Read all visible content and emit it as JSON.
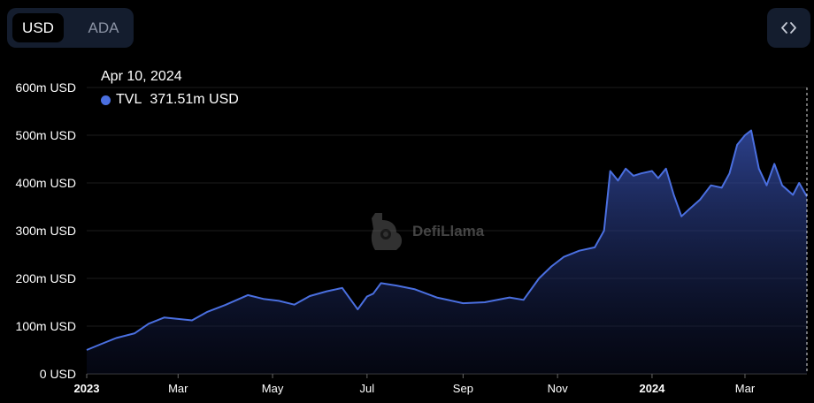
{
  "toolbar": {
    "currency_options": [
      "USD",
      "ADA"
    ],
    "selected_currency": "USD",
    "embed_icon": "code-brackets-icon"
  },
  "tooltip": {
    "date": "Apr 10, 2024",
    "series_name": "TVL",
    "value": "371.51m USD",
    "color": "#4a6fe0"
  },
  "watermark": {
    "text": "DefiLlama",
    "icon": "llama-logo-icon"
  },
  "chart_data": {
    "type": "area",
    "series": [
      {
        "name": "TVL",
        "color": "#4a6fe0",
        "x": [
          "2023-01-01",
          "2023-01-10",
          "2023-01-20",
          "2023-02-01",
          "2023-02-10",
          "2023-02-20",
          "2023-03-01",
          "2023-03-10",
          "2023-03-20",
          "2023-04-01",
          "2023-04-15",
          "2023-04-25",
          "2023-05-05",
          "2023-05-15",
          "2023-05-25",
          "2023-06-05",
          "2023-06-15",
          "2023-06-25",
          "2023-07-01",
          "2023-07-05",
          "2023-07-10",
          "2023-07-20",
          "2023-08-01",
          "2023-08-15",
          "2023-09-01",
          "2023-09-15",
          "2023-10-01",
          "2023-10-10",
          "2023-10-20",
          "2023-10-28",
          "2023-11-05",
          "2023-11-15",
          "2023-11-25",
          "2023-12-01",
          "2023-12-05",
          "2023-12-10",
          "2023-12-15",
          "2023-12-20",
          "2023-12-25",
          "2024-01-01",
          "2024-01-05",
          "2024-01-10",
          "2024-01-15",
          "2024-01-20",
          "2024-01-25",
          "2024-02-01",
          "2024-02-08",
          "2024-02-15",
          "2024-02-20",
          "2024-02-25",
          "2024-03-01",
          "2024-03-05",
          "2024-03-10",
          "2024-03-15",
          "2024-03-20",
          "2024-03-25",
          "2024-04-01",
          "2024-04-05",
          "2024-04-10"
        ],
        "values": [
          50,
          62,
          75,
          85,
          105,
          118,
          115,
          112,
          130,
          145,
          165,
          157,
          153,
          145,
          163,
          173,
          180,
          135,
          162,
          168,
          190,
          185,
          177,
          160,
          148,
          150,
          160,
          155,
          200,
          225,
          245,
          258,
          265,
          300,
          425,
          405,
          430,
          415,
          420,
          425,
          410,
          430,
          375,
          330,
          345,
          365,
          395,
          390,
          420,
          480,
          500,
          510,
          430,
          395,
          440,
          395,
          375,
          400,
          371.51
        ]
      }
    ],
    "xlabel": "",
    "ylabel": "",
    "ylim": [
      0,
      600
    ],
    "xlim": [
      "2023-01-01",
      "2024-04-10"
    ],
    "y_tick_values": [
      0,
      100,
      200,
      300,
      400,
      500,
      600
    ],
    "y_tick_labels": [
      "0 USD",
      "100m USD",
      "200m USD",
      "300m USD",
      "400m USD",
      "500m USD",
      "600m USD"
    ],
    "x_ticks": [
      {
        "date": "2023-01-01",
        "label": "2023",
        "bold": true
      },
      {
        "date": "2023-03-01",
        "label": "Mar",
        "bold": false
      },
      {
        "date": "2023-05-01",
        "label": "May",
        "bold": false
      },
      {
        "date": "2023-07-01",
        "label": "Jul",
        "bold": false
      },
      {
        "date": "2023-09-01",
        "label": "Sep",
        "bold": false
      },
      {
        "date": "2023-11-01",
        "label": "Nov",
        "bold": false
      },
      {
        "date": "2024-01-01",
        "label": "2024",
        "bold": true
      },
      {
        "date": "2024-03-01",
        "label": "Mar",
        "bold": false
      }
    ],
    "grid": true,
    "legend": "tooltip top-left"
  }
}
